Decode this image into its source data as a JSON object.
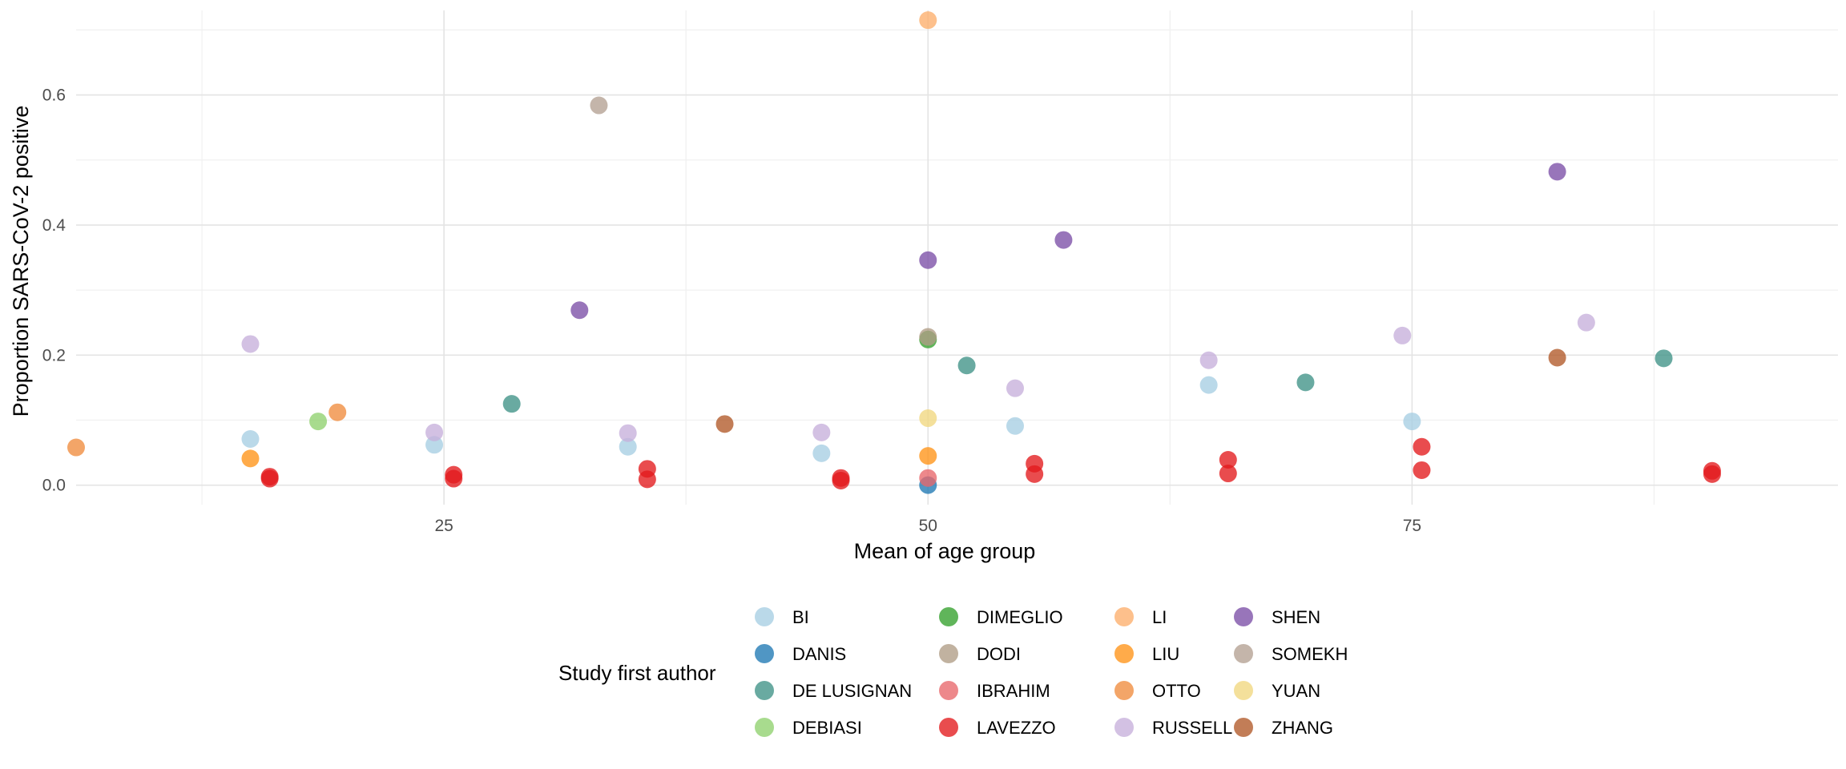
{
  "chart_data": {
    "type": "scatter",
    "xlabel": "Mean of age group",
    "ylabel": "Proportion SARS-CoV-2 positive",
    "xlim": [
      6,
      97
    ],
    "ylim": [
      -0.03,
      0.73
    ],
    "x_ticks": [
      25,
      50,
      75
    ],
    "y_ticks": [
      0.0,
      0.2,
      0.4,
      0.6
    ],
    "x_tick_labels": [
      "25",
      "50",
      "75"
    ],
    "y_tick_labels": [
      "0.0",
      "0.2",
      "0.4",
      "0.6"
    ],
    "grid": true,
    "legend": {
      "title": "Study first author",
      "position": "bottom",
      "columns": 4
    },
    "series": [
      {
        "name": "BI",
        "color": "#a6cee3",
        "points": [
          [
            15,
            0.071
          ],
          [
            24.5,
            0.062
          ],
          [
            34.5,
            0.059
          ],
          [
            44.5,
            0.049
          ],
          [
            54.5,
            0.091
          ],
          [
            64.5,
            0.154
          ],
          [
            75,
            0.098
          ]
        ]
      },
      {
        "name": "DANIS",
        "color": "#1f78b4",
        "points": [
          [
            50,
            0.0
          ]
        ]
      },
      {
        "name": "DE LUSIGNAN",
        "color": "#3f9287",
        "points": [
          [
            28.5,
            0.125
          ],
          [
            52,
            0.184
          ],
          [
            69.5,
            0.158
          ],
          [
            88,
            0.195
          ]
        ]
      },
      {
        "name": "DEBIASI",
        "color": "#8fd16e",
        "points": [
          [
            18.5,
            0.098
          ]
        ]
      },
      {
        "name": "DIMEGLIO",
        "color": "#33a02c",
        "points": [
          [
            50,
            0.224
          ]
        ]
      },
      {
        "name": "DODI",
        "color": "#b09c85",
        "points": [
          [
            50,
            0.228
          ]
        ]
      },
      {
        "name": "IBRAHIM",
        "color": "#e8676a",
        "points": [
          [
            50,
            0.011
          ]
        ]
      },
      {
        "name": "LAVEZZO",
        "color": "#e31a1c",
        "points": [
          [
            16,
            0.013
          ],
          [
            16,
            0.01
          ],
          [
            25.5,
            0.016
          ],
          [
            25.5,
            0.01
          ],
          [
            35.5,
            0.025
          ],
          [
            35.5,
            0.009
          ],
          [
            45.5,
            0.011
          ],
          [
            45.5,
            0.007
          ],
          [
            55.5,
            0.033
          ],
          [
            55.5,
            0.017
          ],
          [
            65.5,
            0.039
          ],
          [
            65.5,
            0.018
          ],
          [
            75.5,
            0.059
          ],
          [
            75.5,
            0.023
          ],
          [
            90.5,
            0.022
          ],
          [
            90.5,
            0.017
          ]
        ]
      },
      {
        "name": "LI",
        "color": "#fdae6b",
        "points": [
          [
            50,
            0.715
          ]
        ]
      },
      {
        "name": "LIU",
        "color": "#ff9417",
        "points": [
          [
            15,
            0.041
          ],
          [
            50,
            0.045
          ]
        ]
      },
      {
        "name": "OTTO",
        "color": "#ef8c3e",
        "points": [
          [
            6,
            0.058
          ],
          [
            19.5,
            0.112
          ]
        ]
      },
      {
        "name": "RUSSELL",
        "color": "#c6afdb",
        "points": [
          [
            15,
            0.217
          ],
          [
            24.5,
            0.081
          ],
          [
            34.5,
            0.08
          ],
          [
            44.5,
            0.081
          ],
          [
            54.5,
            0.149
          ],
          [
            64.5,
            0.192
          ],
          [
            74.5,
            0.23
          ],
          [
            84,
            0.25
          ]
        ]
      },
      {
        "name": "SHEN",
        "color": "#7b4ea7",
        "points": [
          [
            32,
            0.269
          ],
          [
            50,
            0.346
          ],
          [
            57,
            0.377
          ],
          [
            82.5,
            0.482
          ]
        ]
      },
      {
        "name": "SOMEKH",
        "color": "#b3a092",
        "points": [
          [
            33,
            0.584
          ]
        ]
      },
      {
        "name": "YUAN",
        "color": "#f1d77f",
        "points": [
          [
            50,
            0.103
          ]
        ]
      },
      {
        "name": "ZHANG",
        "color": "#b15928",
        "points": [
          [
            39.5,
            0.094
          ],
          [
            82.5,
            0.196
          ]
        ]
      }
    ]
  }
}
